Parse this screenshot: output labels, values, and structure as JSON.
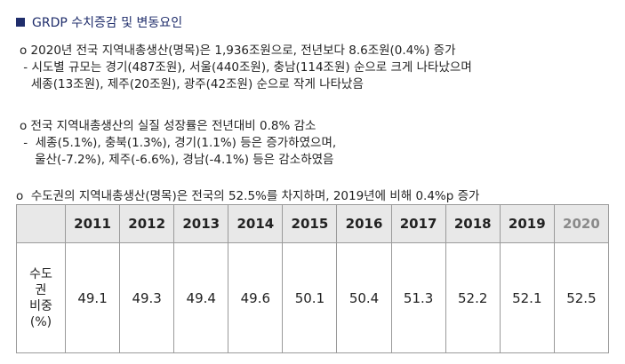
{
  "heading": "GRDP 수치증감 및 변동요인",
  "section1": {
    "line1": "o  2020년 전국 지역내총생산(명목)은 1,936조원으로, 전년보다 8.6조원(0.4%) 증가",
    "line2": " - 시도별 규모는 경기(487조원), 서울(440조원), 충남(114조원) 순으로 크게 나타났으며",
    "line3": "   세종(13조원), 제주(20조원), 광주(42조원) 순으로 작게 나타났음"
  },
  "section2": {
    "line1": "o  전국 지역내총생산의 실질 성장률은 전년대비 0.8% 감소",
    "line2": " -  세종(5.1%), 충북(1.3%), 경기(1.1%) 등은 증가하였으며,",
    "line3": "    울산(-7.2%), 제주(-6.6%), 경남(-4.1%) 등은 감소하였음"
  },
  "note": "o  수도권의 지역내총생산(명목)은 전국의 52.5%를 차지하며, 2019년에 비해 0.4%p 증가",
  "table": {
    "row_label": "수도\n권\n비중\n(%)",
    "years": [
      "2011",
      "2012",
      "2013",
      "2014",
      "2015",
      "2016",
      "2017",
      "2018",
      "2019",
      "2020"
    ],
    "values": [
      "49.1",
      "49.3",
      "49.4",
      "49.6",
      "50.1",
      "50.4",
      "51.3",
      "52.2",
      "52.1",
      "52.5"
    ]
  }
}
